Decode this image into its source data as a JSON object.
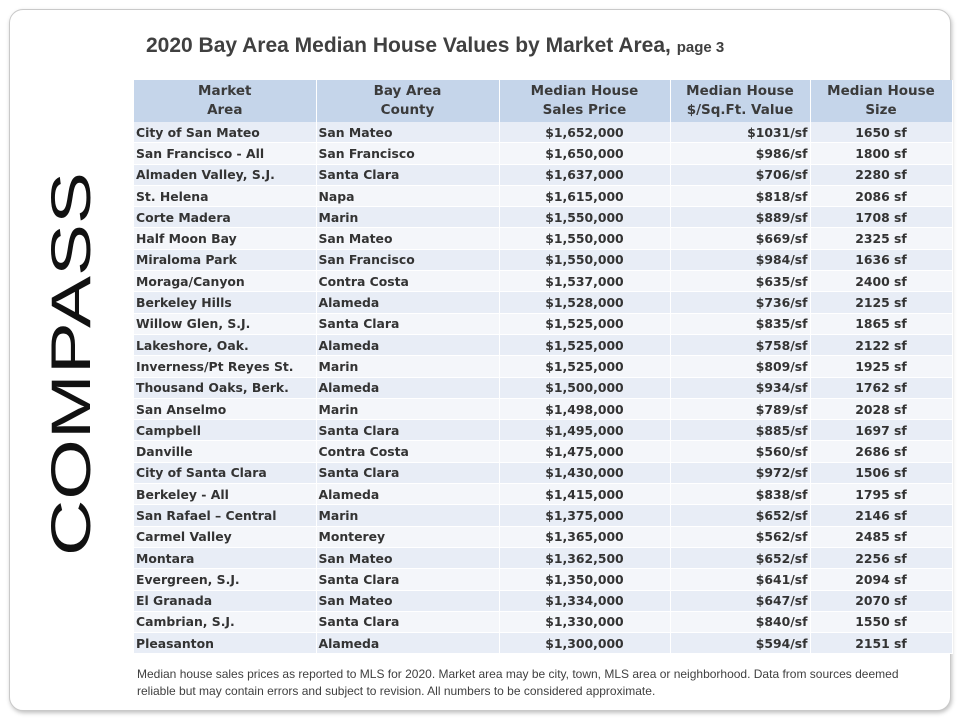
{
  "logo": {
    "text": "COMPASS"
  },
  "title": {
    "main": "2020 Bay Area Median House Values by Market Area,",
    "page": "page 3"
  },
  "table": {
    "headers": [
      [
        "Market",
        "Area"
      ],
      [
        "Bay Area",
        "County"
      ],
      [
        "Median House",
        "Sales Price"
      ],
      [
        "Median House",
        "$/Sq.Ft. Value"
      ],
      [
        "Median House",
        "Size"
      ]
    ],
    "rows": [
      [
        "City of San Mateo",
        "San Mateo",
        "$1,652,000",
        "$1031/sf",
        "1650  sf"
      ],
      [
        "San Francisco - All",
        "San Francisco",
        "$1,650,000",
        "$986/sf",
        "1800  sf"
      ],
      [
        "Almaden Valley, S.J.",
        "Santa Clara",
        "$1,637,000",
        "$706/sf",
        "2280  sf"
      ],
      [
        "St. Helena",
        "Napa",
        "$1,615,000",
        "$818/sf",
        "2086  sf"
      ],
      [
        "Corte Madera",
        "Marin",
        "$1,550,000",
        "$889/sf",
        "1708  sf"
      ],
      [
        "Half Moon Bay",
        "San Mateo",
        "$1,550,000",
        "$669/sf",
        "2325  sf"
      ],
      [
        "Miraloma Park",
        "San Francisco",
        "$1,550,000",
        "$984/sf",
        "1636  sf"
      ],
      [
        "Moraga/Canyon",
        "Contra Costa",
        "$1,537,000",
        "$635/sf",
        "2400  sf"
      ],
      [
        "Berkeley Hills",
        "Alameda",
        "$1,528,000",
        "$736/sf",
        "2125  sf"
      ],
      [
        "Willow Glen, S.J.",
        "Santa Clara",
        "$1,525,000",
        "$835/sf",
        "1865  sf"
      ],
      [
        "Lakeshore, Oak.",
        "Alameda",
        "$1,525,000",
        "$758/sf",
        "2122  sf"
      ],
      [
        "Inverness/Pt Reyes St.",
        "Marin",
        "$1,525,000",
        "$809/sf",
        "1925  sf"
      ],
      [
        "Thousand Oaks, Berk.",
        "Alameda",
        "$1,500,000",
        "$934/sf",
        "1762  sf"
      ],
      [
        "San Anselmo",
        "Marin",
        "$1,498,000",
        "$789/sf",
        "2028  sf"
      ],
      [
        "Campbell",
        "Santa Clara",
        "$1,495,000",
        "$885/sf",
        "1697  sf"
      ],
      [
        "Danville",
        "Contra Costa",
        "$1,475,000",
        "$560/sf",
        "2686  sf"
      ],
      [
        "City of Santa Clara",
        "Santa Clara",
        "$1,430,000",
        "$972/sf",
        "1506  sf"
      ],
      [
        "Berkeley - All",
        "Alameda",
        "$1,415,000",
        "$838/sf",
        "1795  sf"
      ],
      [
        "San Rafael – Central",
        "Marin",
        "$1,375,000",
        "$652/sf",
        "2146  sf"
      ],
      [
        "Carmel Valley",
        "Monterey",
        "$1,365,000",
        "$562/sf",
        "2485  sf"
      ],
      [
        "Montara",
        "San Mateo",
        "$1,362,500",
        "$652/sf",
        "2256  sf"
      ],
      [
        "Evergreen, S.J.",
        "Santa Clara",
        "$1,350,000",
        "$641/sf",
        "2094  sf"
      ],
      [
        "El Granada",
        "San Mateo",
        "$1,334,000",
        "$647/sf",
        "2070  sf"
      ],
      [
        "Cambrian, S.J.",
        "Santa Clara",
        "$1,330,000",
        "$840/sf",
        "1550  sf"
      ],
      [
        "Pleasanton",
        "Alameda",
        "$1,300,000",
        "$594/sf",
        "2151  sf"
      ]
    ]
  },
  "footnote": "Median house sales prices as reported to MLS for 2020.  Market area may be city, town, MLS area or neighborhood. Data from sources deemed reliable but may contain errors and subject to revision. All numbers to be considered approximate."
}
